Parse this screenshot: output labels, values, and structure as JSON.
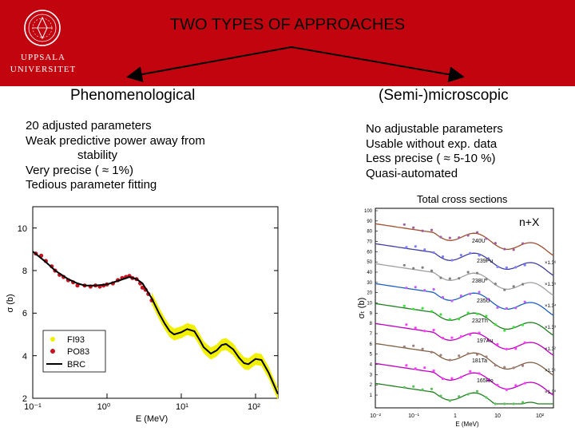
{
  "slide": {
    "title": "TWO TYPES OF APPROACHES",
    "logo": {
      "line1": "UPPSALA",
      "line2": "UNIVERSITET"
    }
  },
  "left": {
    "heading": "Phenomenological",
    "items": [
      "20 adjusted parameters",
      "Weak predictive power away from",
      "stability",
      "Very precise ( ≈ 1%)",
      "Tedious parameter fitting"
    ]
  },
  "right": {
    "heading": "(Semi-)microscopic",
    "items": [
      "No adjustable parameters",
      "Usable without exp. data",
      "Less precise ( ≈ 5-10 %)",
      "Quasi-automated"
    ],
    "caption": "Total cross sections"
  },
  "colors": {
    "brand": "#c2040f",
    "fit": "#000000",
    "fi93": "#f0f000",
    "po83": "#c8141e"
  },
  "chart_data": [
    {
      "type": "line",
      "title": "",
      "xlabel": "E (MeV)",
      "ylabel": "σ (b)",
      "xscale": "log",
      "xlim": [
        0.1,
        200
      ],
      "ylim": [
        2,
        11
      ],
      "xticks": [
        "10⁻¹",
        "10⁰",
        "10¹",
        "10²"
      ],
      "yticks": [
        "2",
        "4",
        "6",
        "8",
        "10"
      ],
      "legend": [
        "FI93",
        "PO83",
        "BRC"
      ],
      "series": [
        {
          "name": "BRC",
          "x": [
            0.1,
            0.15,
            0.2,
            0.3,
            0.4,
            0.5,
            0.7,
            1,
            1.5,
            2,
            2.5,
            3,
            4,
            5,
            6,
            7,
            8,
            10,
            12,
            15,
            18,
            20,
            25,
            30,
            35,
            40,
            50,
            60,
            70,
            80,
            100,
            120,
            150,
            200
          ],
          "values": [
            8.9,
            8.4,
            8.0,
            7.6,
            7.4,
            7.3,
            7.3,
            7.35,
            7.55,
            7.7,
            7.6,
            7.4,
            6.7,
            6.0,
            5.5,
            5.15,
            5.0,
            5.1,
            5.25,
            5.15,
            4.7,
            4.4,
            4.1,
            4.25,
            4.5,
            4.55,
            4.3,
            3.9,
            3.65,
            3.6,
            3.85,
            3.8,
            3.2,
            2.2
          ]
        },
        {
          "name": "PO83",
          "x": [
            0.11,
            0.13,
            0.15,
            0.18,
            0.2,
            0.23,
            0.26,
            0.3,
            0.35,
            0.4,
            0.5,
            0.6,
            0.7,
            0.8,
            0.9,
            1.0,
            1.2,
            1.4,
            1.6,
            1.8,
            2.0,
            2.2,
            2.5,
            2.8,
            3.0,
            3.3,
            3.6,
            4.0
          ],
          "values": [
            8.8,
            8.7,
            8.45,
            8.2,
            8.0,
            7.8,
            7.7,
            7.55,
            7.45,
            7.3,
            7.3,
            7.25,
            7.3,
            7.25,
            7.3,
            7.35,
            7.4,
            7.55,
            7.65,
            7.7,
            7.75,
            7.65,
            7.6,
            7.4,
            7.2,
            7.1,
            6.9,
            6.6
          ]
        },
        {
          "name": "FI93",
          "x": [
            4,
            5,
            6,
            7,
            8,
            10,
            12,
            15,
            18,
            20,
            25,
            30,
            35,
            40,
            50,
            60,
            70,
            80,
            100,
            120,
            150,
            200
          ],
          "values": [
            6.7,
            6.0,
            5.5,
            5.15,
            5.0,
            5.1,
            5.25,
            5.15,
            4.7,
            4.4,
            4.1,
            4.25,
            4.5,
            4.55,
            4.3,
            3.9,
            3.65,
            3.6,
            3.85,
            3.8,
            3.2,
            2.2
          ]
        }
      ]
    },
    {
      "type": "line",
      "title": "n+X",
      "xlabel": "E (MeV)",
      "ylabel": "σₜ (b)",
      "xscale": "log",
      "yscale": "log",
      "xlim": [
        0.01,
        200
      ],
      "ylim": [
        0.5,
        100
      ],
      "xticks": [
        "10⁻²",
        "10⁻¹",
        "1",
        "10",
        "10²"
      ],
      "yticks": [
        "100",
        "90",
        "80",
        "70",
        "60",
        "50",
        "40",
        "30",
        "20",
        "10",
        "9",
        "8",
        "7",
        "6",
        "5",
        "4",
        "3",
        "2",
        "1"
      ],
      "legend": [],
      "curve_labels": [
        "240U",
        "239Pu",
        "238U",
        "235U",
        "232Th",
        "197Au",
        "181Ta",
        "165Ho"
      ],
      "scale_labels": [
        "×1.3⁶",
        "×1.3⁵",
        "×1.3⁴",
        "×1.3³",
        "×1.3²",
        "×1.3¹",
        "×1.3⁰"
      ]
    }
  ]
}
